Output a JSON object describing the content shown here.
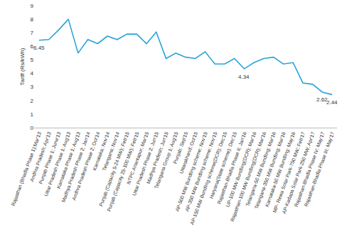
{
  "chart_data": {
    "type": "line",
    "y_label": "Tariff (Rs/kWh)",
    "categories": [
      "Rajasthan (Bhadla Phase 1);Mar'13",
      "Andhra Pradesh; Apr'13",
      "Punjab Phase 1; June'13",
      "Uttar Pradesh Phase 1; Aug'13",
      "Karnataka Phase 1; Aug'13",
      "Madhya Pradesh Phase 2; Jan'14",
      "Andhra Pradesh Phase 2; Oct'14",
      "Karnataka; Nov'14",
      "Telangana; Nov'14",
      "Punjab (Capacity 5-24 MW); Feb'15",
      "Punjab (Capacity 25-100 MW); Feb'15",
      "NTPC Anantapur; Mar'15",
      "Uttar Pradesh Phase 2; Jun'15",
      "Madhya Pradesh; Jun'15",
      "Telangana Group 1; Aug'15",
      "Punjab; Sep'15",
      "Uttarakhand; Oct'15",
      "AP-500 MW Bundling scheme; Nov'15",
      "AP-350 MW Bundling scheme; Nov'15",
      "AP-150 MW Bundling scheme(DCR); Dec'15",
      "Haryana(State scheme); Dec'15",
      "Rajasthan-Bhadla Phase II; Jan'16",
      "UP-100 MW Bundling(DCR); Mar'16",
      "Rajasthan-100 MW Bundling(DCR); Mar'16",
      "Telangana-50 MW Bundling; Mar'16",
      "Telangana-350 MW Bundling; Mar'16",
      "Karnataka-50 MW Bundling; May'16",
      "MP- Rewa Solar Park-750 MW; Feb'17",
      "AP-Kadapa Solar Park-250 MW; Apr'17",
      "Rajasthan-Bhadla Phase IV; May'17",
      "Rajasthan-Bhadla Phase III; May'17"
    ],
    "values": [
      6.45,
      6.5,
      7.2,
      8.0,
      5.5,
      6.5,
      6.2,
      6.75,
      6.5,
      6.9,
      6.9,
      6.2,
      7.05,
      5.1,
      5.5,
      5.2,
      5.1,
      5.6,
      4.7,
      4.7,
      5.1,
      4.34,
      4.8,
      5.1,
      5.2,
      4.7,
      4.8,
      3.3,
      3.2,
      2.62,
      2.44
    ],
    "color": "#2aa3d8",
    "ylim": [
      0,
      9
    ],
    "yticks": [
      0,
      1,
      2,
      3,
      4,
      5,
      6,
      7,
      8,
      9
    ],
    "grid": false,
    "annotations": [
      {
        "category": "Rajasthan (Bhadla Phase 1);Mar'13",
        "text": "6.45"
      },
      {
        "category": "Rajasthan-Bhadla Phase II; Jan'16",
        "text": "4.34"
      },
      {
        "category": "Rajasthan-Bhadla Phase IV; May'17",
        "text": "2.62"
      },
      {
        "category": "Rajasthan-Bhadla Phase III; May'17",
        "text": "2.44"
      }
    ]
  }
}
